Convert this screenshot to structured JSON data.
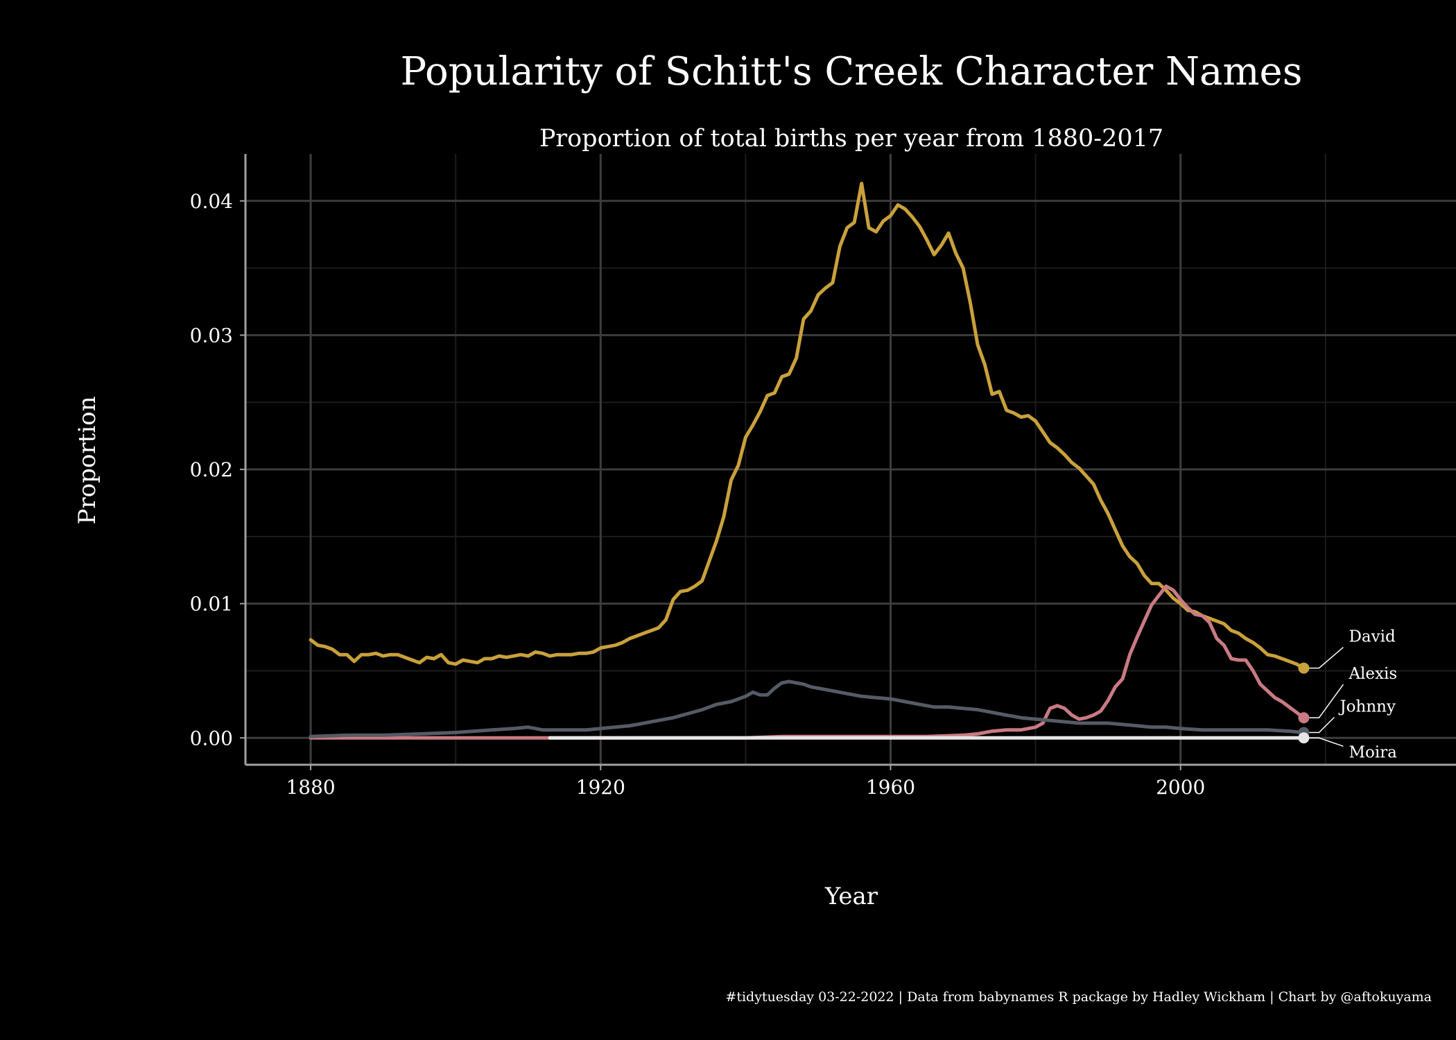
{
  "colors": {
    "background": "#000000",
    "text": "#ffffff",
    "grid_major": "#3d3d3d",
    "grid_minor": "#1c1c1c",
    "axis": "#a0a0a0"
  },
  "chart_data": {
    "type": "line",
    "title": "Popularity of Schitt's Creek Character Names",
    "subtitle": "Proportion of total births per year from 1880-2017",
    "xlabel": "Year",
    "ylabel": "Proportion",
    "caption": "#tidytuesday 03-22-2022 | Data from babynames R package by Hadley Wickham | Chart by @aftokuyama",
    "xlim": [
      1871,
      2038
    ],
    "ylim": [
      -0.002,
      0.0435
    ],
    "x_ticks": [
      1880,
      1920,
      1960,
      2000
    ],
    "x_tick_labels": [
      "1880",
      "1920",
      "1960",
      "2000"
    ],
    "y_ticks": [
      0,
      0.01,
      0.02,
      0.03,
      0.04
    ],
    "y_tick_labels": [
      "0.00",
      "0.01",
      "0.02",
      "0.03",
      "0.04"
    ],
    "grid": true,
    "legend": "none",
    "series": [
      {
        "name": "David",
        "color": "#c9a13b",
        "points": [
          [
            1880,
            0.0073
          ],
          [
            1881,
            0.0069
          ],
          [
            1882,
            0.0068
          ],
          [
            1883,
            0.0066
          ],
          [
            1884,
            0.0062
          ],
          [
            1885,
            0.0062
          ],
          [
            1886,
            0.0057
          ],
          [
            1887,
            0.0062
          ],
          [
            1888,
            0.0062
          ],
          [
            1889,
            0.0063
          ],
          [
            1890,
            0.0061
          ],
          [
            1891,
            0.0062
          ],
          [
            1892,
            0.0062
          ],
          [
            1893,
            0.006
          ],
          [
            1894,
            0.0058
          ],
          [
            1895,
            0.0056
          ],
          [
            1896,
            0.006
          ],
          [
            1897,
            0.0059
          ],
          [
            1898,
            0.0062
          ],
          [
            1899,
            0.0056
          ],
          [
            1900,
            0.0055
          ],
          [
            1901,
            0.0058
          ],
          [
            1902,
            0.0057
          ],
          [
            1903,
            0.0056
          ],
          [
            1904,
            0.0059
          ],
          [
            1905,
            0.0059
          ],
          [
            1906,
            0.0061
          ],
          [
            1907,
            0.006
          ],
          [
            1908,
            0.0061
          ],
          [
            1909,
            0.0062
          ],
          [
            1910,
            0.0061
          ],
          [
            1911,
            0.0064
          ],
          [
            1912,
            0.0063
          ],
          [
            1913,
            0.0061
          ],
          [
            1914,
            0.0062
          ],
          [
            1915,
            0.0062
          ],
          [
            1916,
            0.0062
          ],
          [
            1917,
            0.0063
          ],
          [
            1918,
            0.0063
          ],
          [
            1919,
            0.0064
          ],
          [
            1920,
            0.0067
          ],
          [
            1921,
            0.0068
          ],
          [
            1922,
            0.0069
          ],
          [
            1923,
            0.0071
          ],
          [
            1924,
            0.0074
          ],
          [
            1925,
            0.0076
          ],
          [
            1926,
            0.0078
          ],
          [
            1927,
            0.008
          ],
          [
            1928,
            0.0082
          ],
          [
            1929,
            0.0088
          ],
          [
            1930,
            0.0103
          ],
          [
            1931,
            0.0109
          ],
          [
            1932,
            0.011
          ],
          [
            1933,
            0.0113
          ],
          [
            1934,
            0.0117
          ],
          [
            1935,
            0.0132
          ],
          [
            1936,
            0.0147
          ],
          [
            1937,
            0.0165
          ],
          [
            1938,
            0.0192
          ],
          [
            1939,
            0.0203
          ],
          [
            1940,
            0.0224
          ],
          [
            1941,
            0.0233
          ],
          [
            1942,
            0.0243
          ],
          [
            1943,
            0.0255
          ],
          [
            1944,
            0.0257
          ],
          [
            1945,
            0.0269
          ],
          [
            1946,
            0.0271
          ],
          [
            1947,
            0.0283
          ],
          [
            1948,
            0.0312
          ],
          [
            1949,
            0.0318
          ],
          [
            1950,
            0.033
          ],
          [
            1951,
            0.0335
          ],
          [
            1952,
            0.0339
          ],
          [
            1953,
            0.0366
          ],
          [
            1954,
            0.038
          ],
          [
            1955,
            0.0384
          ],
          [
            1956,
            0.0413
          ],
          [
            1957,
            0.038
          ],
          [
            1958,
            0.0377
          ],
          [
            1959,
            0.0385
          ],
          [
            1960,
            0.0389
          ],
          [
            1961,
            0.0397
          ],
          [
            1962,
            0.0394
          ],
          [
            1963,
            0.0388
          ],
          [
            1964,
            0.0381
          ],
          [
            1965,
            0.0371
          ],
          [
            1966,
            0.036
          ],
          [
            1967,
            0.0367
          ],
          [
            1968,
            0.0376
          ],
          [
            1969,
            0.0361
          ],
          [
            1970,
            0.035
          ],
          [
            1971,
            0.0324
          ],
          [
            1972,
            0.0293
          ],
          [
            1973,
            0.0278
          ],
          [
            1974,
            0.0256
          ],
          [
            1975,
            0.0258
          ],
          [
            1976,
            0.0244
          ],
          [
            1977,
            0.0242
          ],
          [
            1978,
            0.0239
          ],
          [
            1979,
            0.024
          ],
          [
            1980,
            0.0236
          ],
          [
            1981,
            0.0228
          ],
          [
            1982,
            0.022
          ],
          [
            1983,
            0.0216
          ],
          [
            1984,
            0.0211
          ],
          [
            1985,
            0.0205
          ],
          [
            1986,
            0.0201
          ],
          [
            1987,
            0.0195
          ],
          [
            1988,
            0.0189
          ],
          [
            1989,
            0.0177
          ],
          [
            1990,
            0.0167
          ],
          [
            1991,
            0.0155
          ],
          [
            1992,
            0.0143
          ],
          [
            1993,
            0.0135
          ],
          [
            1994,
            0.013
          ],
          [
            1995,
            0.0121
          ],
          [
            1996,
            0.0115
          ],
          [
            1997,
            0.0115
          ],
          [
            1998,
            0.011
          ],
          [
            1999,
            0.0104
          ],
          [
            2000,
            0.01
          ],
          [
            2001,
            0.0095
          ],
          [
            2002,
            0.0094
          ],
          [
            2003,
            0.0091
          ],
          [
            2004,
            0.0089
          ],
          [
            2005,
            0.0087
          ],
          [
            2006,
            0.0085
          ],
          [
            2007,
            0.008
          ],
          [
            2008,
            0.0078
          ],
          [
            2009,
            0.0074
          ],
          [
            2010,
            0.0071
          ],
          [
            2011,
            0.0067
          ],
          [
            2012,
            0.0062
          ],
          [
            2013,
            0.0061
          ],
          [
            2014,
            0.0059
          ],
          [
            2015,
            0.0057
          ],
          [
            2016,
            0.0055
          ],
          [
            2017,
            0.0052
          ]
        ]
      },
      {
        "name": "Alexis",
        "color": "#c97a82",
        "points": [
          [
            1880,
            0.0
          ],
          [
            1900,
            0.0
          ],
          [
            1912,
            0.0
          ],
          [
            1930,
            0.0
          ],
          [
            1940,
            0.0
          ],
          [
            1945,
            0.0001
          ],
          [
            1950,
            0.0001
          ],
          [
            1955,
            0.0001
          ],
          [
            1960,
            0.0001
          ],
          [
            1965,
            0.0001
          ],
          [
            1970,
            0.0002
          ],
          [
            1972,
            0.0003
          ],
          [
            1974,
            0.0005
          ],
          [
            1976,
            0.0006
          ],
          [
            1978,
            0.0006
          ],
          [
            1980,
            0.0008
          ],
          [
            1981,
            0.0011
          ],
          [
            1982,
            0.0022
          ],
          [
            1983,
            0.0024
          ],
          [
            1984,
            0.0022
          ],
          [
            1985,
            0.0017
          ],
          [
            1986,
            0.0014
          ],
          [
            1987,
            0.0015
          ],
          [
            1988,
            0.0017
          ],
          [
            1989,
            0.002
          ],
          [
            1990,
            0.0028
          ],
          [
            1991,
            0.0038
          ],
          [
            1992,
            0.0044
          ],
          [
            1993,
            0.0062
          ],
          [
            1994,
            0.0075
          ],
          [
            1995,
            0.0087
          ],
          [
            1996,
            0.0099
          ],
          [
            1997,
            0.0106
          ],
          [
            1998,
            0.0113
          ],
          [
            1999,
            0.011
          ],
          [
            2000,
            0.0103
          ],
          [
            2001,
            0.0097
          ],
          [
            2002,
            0.0092
          ],
          [
            2003,
            0.0091
          ],
          [
            2004,
            0.0086
          ],
          [
            2005,
            0.0074
          ],
          [
            2006,
            0.0069
          ],
          [
            2007,
            0.0059
          ],
          [
            2008,
            0.0058
          ],
          [
            2009,
            0.0058
          ],
          [
            2010,
            0.005
          ],
          [
            2011,
            0.004
          ],
          [
            2012,
            0.0035
          ],
          [
            2013,
            0.003
          ],
          [
            2014,
            0.0027
          ],
          [
            2015,
            0.0023
          ],
          [
            2016,
            0.0019
          ],
          [
            2017,
            0.0015
          ]
        ]
      },
      {
        "name": "Johnny",
        "color": "#555b66",
        "points": [
          [
            1880,
            0.0001
          ],
          [
            1885,
            0.0002
          ],
          [
            1890,
            0.0002
          ],
          [
            1895,
            0.0003
          ],
          [
            1900,
            0.0004
          ],
          [
            1905,
            0.0006
          ],
          [
            1908,
            0.0007
          ],
          [
            1910,
            0.0008
          ],
          [
            1912,
            0.0006
          ],
          [
            1915,
            0.0006
          ],
          [
            1918,
            0.0006
          ],
          [
            1920,
            0.0007
          ],
          [
            1922,
            0.0008
          ],
          [
            1924,
            0.0009
          ],
          [
            1926,
            0.0011
          ],
          [
            1928,
            0.0013
          ],
          [
            1930,
            0.0015
          ],
          [
            1932,
            0.0018
          ],
          [
            1934,
            0.0021
          ],
          [
            1936,
            0.0025
          ],
          [
            1938,
            0.0027
          ],
          [
            1940,
            0.0031
          ],
          [
            1941,
            0.0034
          ],
          [
            1942,
            0.0032
          ],
          [
            1943,
            0.0032
          ],
          [
            1944,
            0.0037
          ],
          [
            1945,
            0.0041
          ],
          [
            1946,
            0.0042
          ],
          [
            1947,
            0.0041
          ],
          [
            1948,
            0.004
          ],
          [
            1949,
            0.0038
          ],
          [
            1950,
            0.0037
          ],
          [
            1952,
            0.0035
          ],
          [
            1954,
            0.0033
          ],
          [
            1956,
            0.0031
          ],
          [
            1958,
            0.003
          ],
          [
            1960,
            0.0029
          ],
          [
            1962,
            0.0027
          ],
          [
            1964,
            0.0025
          ],
          [
            1966,
            0.0023
          ],
          [
            1968,
            0.0023
          ],
          [
            1970,
            0.0022
          ],
          [
            1972,
            0.0021
          ],
          [
            1974,
            0.0019
          ],
          [
            1976,
            0.0017
          ],
          [
            1978,
            0.0015
          ],
          [
            1980,
            0.0014
          ],
          [
            1982,
            0.0013
          ],
          [
            1984,
            0.0012
          ],
          [
            1986,
            0.0011
          ],
          [
            1988,
            0.0011
          ],
          [
            1990,
            0.0011
          ],
          [
            1992,
            0.001
          ],
          [
            1994,
            0.0009
          ],
          [
            1996,
            0.0008
          ],
          [
            1998,
            0.0008
          ],
          [
            2000,
            0.0007
          ],
          [
            2003,
            0.0006
          ],
          [
            2006,
            0.0006
          ],
          [
            2009,
            0.0006
          ],
          [
            2012,
            0.0006
          ],
          [
            2015,
            0.0005
          ],
          [
            2017,
            0.0004
          ]
        ]
      },
      {
        "name": "Moira",
        "color": "#e6e6e6",
        "points": [
          [
            1913,
            0.0
          ],
          [
            1930,
            0.0
          ],
          [
            1940,
            0.0
          ],
          [
            1950,
            0.0
          ],
          [
            1960,
            0.0
          ],
          [
            1970,
            0.0
          ],
          [
            1980,
            0.0
          ],
          [
            1990,
            0.0
          ],
          [
            2000,
            0.0
          ],
          [
            2010,
            0.0
          ],
          [
            2017,
            0.0
          ]
        ]
      }
    ],
    "end_labels": [
      {
        "name": "David",
        "year": 2017,
        "value": 0.0052,
        "label_dx": 65,
        "label_dy": -38
      },
      {
        "name": "Alexis",
        "year": 2017,
        "value": 0.0015,
        "label_dx": 65,
        "label_dy": -56
      },
      {
        "name": "Johnny",
        "year": 2017,
        "value": 0.0004,
        "label_dx": 52,
        "label_dy": -30
      },
      {
        "name": "Moira",
        "year": 2017,
        "value": 0.0,
        "label_dx": 65,
        "label_dy": 20
      }
    ]
  }
}
